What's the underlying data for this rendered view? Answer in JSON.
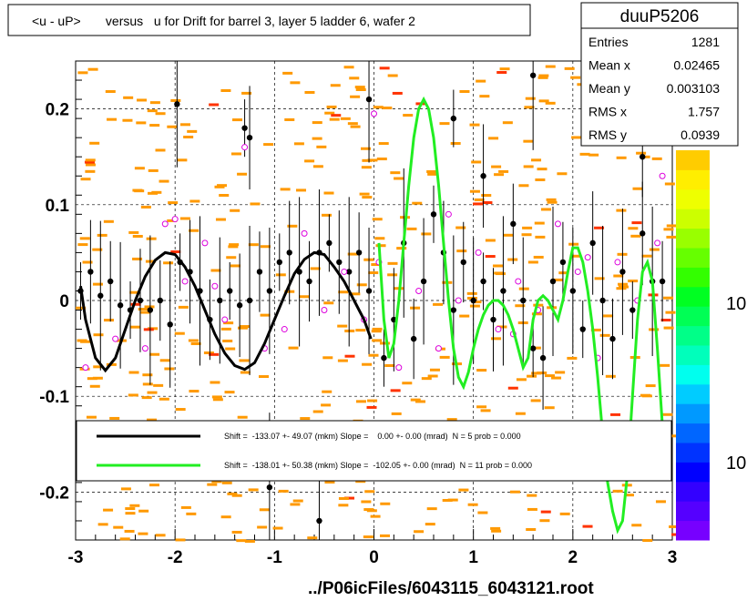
{
  "title": "<u - uP>       versus   u for Drift for barrel 3, layer 5 ladder 6, wafer 2",
  "footer": "../P06icFiles/6043115_6043121.root",
  "stats": {
    "name": "duuP5206",
    "rows": [
      {
        "label": "Entries",
        "value": "1281"
      },
      {
        "label": "Mean x",
        "value": "0.02465"
      },
      {
        "label": "Mean y",
        "value": "0.003103"
      },
      {
        "label": "RMS x",
        "value": "1.757"
      },
      {
        "label": "RMS y",
        "value": "0.0939"
      }
    ]
  },
  "legend": {
    "black": "Shift =  -133.07 +- 49.07 (mkm) Slope =    0.00 +- 0.00 (mrad)  N = 5 prob = 0.000",
    "green": "Shift =  -138.01 +- 50.38 (mkm) Slope =  -102.05 +- 0.00 (mrad)  N = 11 prob = 0.000"
  },
  "palette_labels": [
    "10",
    "10"
  ],
  "colors": {
    "black_fit": "#000000",
    "green_fit": "#22ee22",
    "hist": "#ff9900",
    "open_marker": "#dd00dd"
  },
  "chart_data": {
    "type": "scatter",
    "xlim": [
      -3,
      3
    ],
    "ylim": [
      -0.25,
      0.25
    ],
    "x_ticks": [
      "-3",
      "-2",
      "-1",
      "0",
      "1",
      "2",
      "3"
    ],
    "y_ticks": [
      "-0.2",
      "-0.1",
      "0",
      "0.1",
      "0.2"
    ],
    "grid": true,
    "series": [
      {
        "kind": "points_black",
        "x": [
          -2.95,
          -2.85,
          -2.75,
          -2.65,
          -2.55,
          -2.45,
          -2.35,
          -2.25,
          -2.15,
          -2.05,
          -1.95,
          -1.85,
          -1.75,
          -1.65,
          -1.55,
          -1.45,
          -1.35,
          -1.25,
          -1.15,
          -1.05,
          -0.95,
          -0.85,
          -0.75,
          -0.65,
          -0.55,
          -0.45,
          -0.35,
          -0.25,
          -0.15,
          -0.05,
          0.1,
          0.2,
          0.3,
          0.4,
          0.5,
          0.6,
          0.7,
          0.8,
          0.9,
          1.0,
          1.1,
          1.2,
          1.3,
          1.4,
          1.5,
          1.6,
          1.7,
          1.8,
          1.9,
          2.0,
          2.1,
          2.2,
          2.3,
          2.4,
          2.5,
          2.6,
          2.7,
          2.8,
          2.9,
          -1.98,
          -1.3,
          -1.25,
          -1.05,
          -0.55,
          -0.05,
          0.8,
          1.1,
          1.6,
          2.7
        ],
        "y": [
          0.01,
          0.03,
          0.005,
          0.02,
          -0.005,
          -0.01,
          0.0,
          -0.01,
          0.0,
          -0.025,
          0.04,
          0.03,
          0.01,
          -0.02,
          0.0,
          0.01,
          -0.005,
          0.0,
          0.03,
          0.01,
          0.04,
          0.05,
          0.03,
          0.02,
          0.05,
          0.06,
          0.04,
          0.03,
          0.05,
          0.01,
          -0.06,
          -0.02,
          0.06,
          -0.04,
          0.02,
          0.09,
          0.05,
          -0.01,
          0.04,
          0.0,
          0.02,
          -0.02,
          0.01,
          0.08,
          0.0,
          -0.05,
          -0.06,
          0.02,
          0.04,
          0.01,
          -0.03,
          0.06,
          0.0,
          -0.04,
          0.03,
          -0.01,
          0.07,
          0.02,
          0.02,
          0.205,
          0.18,
          0.17,
          -0.195,
          -0.23,
          0.21,
          0.19,
          0.13,
          0.235,
          0.15
        ]
      },
      {
        "kind": "points_open",
        "x": [
          -2.9,
          -2.6,
          -2.3,
          -2.1,
          -1.9,
          -1.7,
          -1.5,
          -1.3,
          -1.1,
          -0.9,
          -0.7,
          -0.5,
          -0.3,
          -0.1,
          0.05,
          0.25,
          0.45,
          0.65,
          0.85,
          1.05,
          1.25,
          1.45,
          1.65,
          1.85,
          2.05,
          2.25,
          2.45,
          2.65,
          2.85,
          -2.0,
          -1.6,
          0.0,
          0.75,
          1.4,
          2.15,
          2.9
        ],
        "y": [
          -0.07,
          -0.04,
          -0.05,
          0.08,
          0.02,
          0.06,
          -0.02,
          0.16,
          -0.05,
          -0.03,
          0.07,
          -0.01,
          0.03,
          -0.02,
          0.04,
          -0.07,
          0.01,
          -0.05,
          0.0,
          0.05,
          -0.03,
          0.02,
          -0.01,
          0.08,
          0.03,
          -0.06,
          0.04,
          0.0,
          0.06,
          0.085,
          0.015,
          0.195,
          0.09,
          -0.035,
          0.045,
          0.13
        ]
      },
      {
        "kind": "fit_black",
        "x": [
          -2.95,
          -2.9,
          -2.8,
          -2.7,
          -2.6,
          -2.5,
          -2.4,
          -2.3,
          -2.2,
          -2.1,
          -2.0,
          -1.9,
          -1.8,
          -1.7,
          -1.6,
          -1.5,
          -1.4,
          -1.3,
          -1.2,
          -1.1,
          -1.0,
          -0.9,
          -0.8,
          -0.7,
          -0.6,
          -0.5,
          -0.4,
          -0.3,
          -0.2,
          -0.1,
          -0.03
        ],
        "y": [
          0.015,
          -0.02,
          -0.06,
          -0.073,
          -0.06,
          -0.03,
          0.0,
          0.025,
          0.042,
          0.05,
          0.048,
          0.035,
          0.015,
          -0.01,
          -0.035,
          -0.055,
          -0.068,
          -0.072,
          -0.065,
          -0.045,
          -0.02,
          0.005,
          0.028,
          0.043,
          0.05,
          0.048,
          0.035,
          0.02,
          0.0,
          -0.02,
          -0.04
        ]
      },
      {
        "kind": "fit_green",
        "x": [
          0.05,
          0.1,
          0.15,
          0.2,
          0.25,
          0.3,
          0.35,
          0.4,
          0.45,
          0.5,
          0.55,
          0.6,
          0.65,
          0.7,
          0.75,
          0.8,
          0.85,
          0.9,
          0.95,
          1.0,
          1.05,
          1.1,
          1.15,
          1.2,
          1.25,
          1.3,
          1.35,
          1.4,
          1.45,
          1.5,
          1.55,
          1.6,
          1.65,
          1.7,
          1.75,
          1.8,
          1.85,
          1.9,
          1.95,
          2.0,
          2.05,
          2.1,
          2.15,
          2.2,
          2.25,
          2.3,
          2.35,
          2.4,
          2.45,
          2.5,
          2.55,
          2.6,
          2.65,
          2.7,
          2.75,
          2.8,
          2.85,
          2.9
        ],
        "y": [
          0.06,
          -0.02,
          -0.06,
          -0.045,
          0.0,
          0.06,
          0.12,
          0.17,
          0.2,
          0.21,
          0.2,
          0.17,
          0.12,
          0.06,
          0.0,
          -0.05,
          -0.08,
          -0.09,
          -0.075,
          -0.05,
          -0.03,
          -0.015,
          -0.005,
          0.0,
          0.0,
          -0.005,
          -0.015,
          -0.03,
          -0.05,
          -0.07,
          -0.06,
          -0.02,
          0.0,
          0.005,
          0.0,
          -0.01,
          -0.02,
          0.0,
          0.03,
          0.055,
          0.055,
          0.04,
          0.01,
          -0.03,
          -0.08,
          -0.14,
          -0.19,
          -0.22,
          -0.24,
          -0.23,
          -0.18,
          -0.1,
          -0.02,
          0.03,
          0.04,
          0.02,
          -0.05,
          -0.13
        ]
      }
    ]
  }
}
